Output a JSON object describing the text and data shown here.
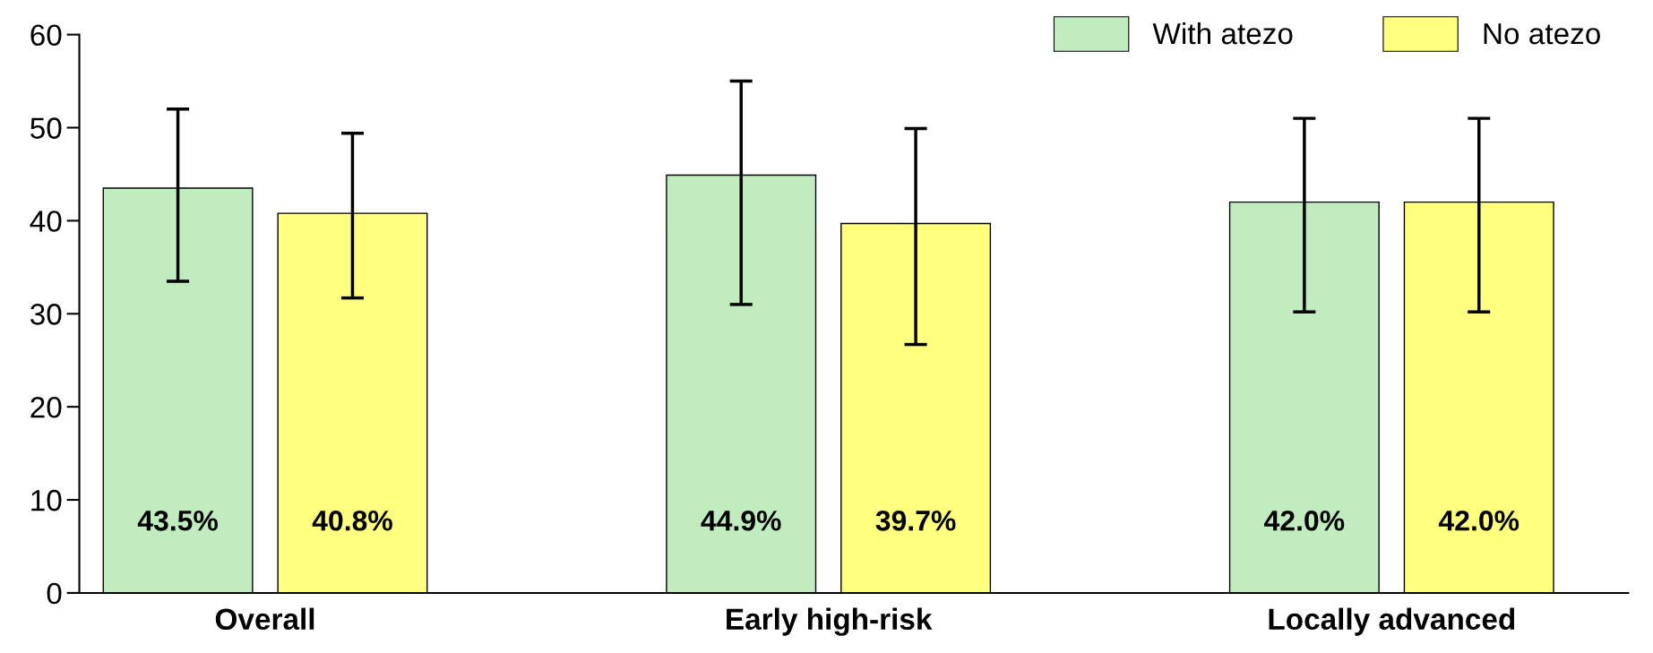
{
  "chart_data": {
    "type": "bar",
    "categories": [
      "Overall",
      "Early high-risk",
      "Locally advanced"
    ],
    "series": [
      {
        "name": "With atezo",
        "color": "#c0ecc0",
        "values": [
          43.5,
          44.9,
          42.0
        ],
        "errors": [
          [
            33.5,
            52.0
          ],
          [
            31.0,
            55.0
          ],
          [
            30.2,
            51.0
          ]
        ],
        "value_labels": [
          "43.5%",
          "44.9%",
          "42.0%"
        ]
      },
      {
        "name": "No atezo",
        "color": "#ffff80",
        "values": [
          40.8,
          39.7,
          42.0
        ],
        "errors": [
          [
            31.7,
            49.4
          ],
          [
            26.7,
            49.9
          ],
          [
            30.2,
            51.0
          ]
        ],
        "value_labels": [
          "40.8%",
          "39.7%",
          "42.0%"
        ]
      }
    ],
    "ylim": [
      0,
      60
    ],
    "yticks": [
      0,
      10,
      20,
      30,
      40,
      50,
      60
    ],
    "grid": false,
    "legend": "top right"
  }
}
